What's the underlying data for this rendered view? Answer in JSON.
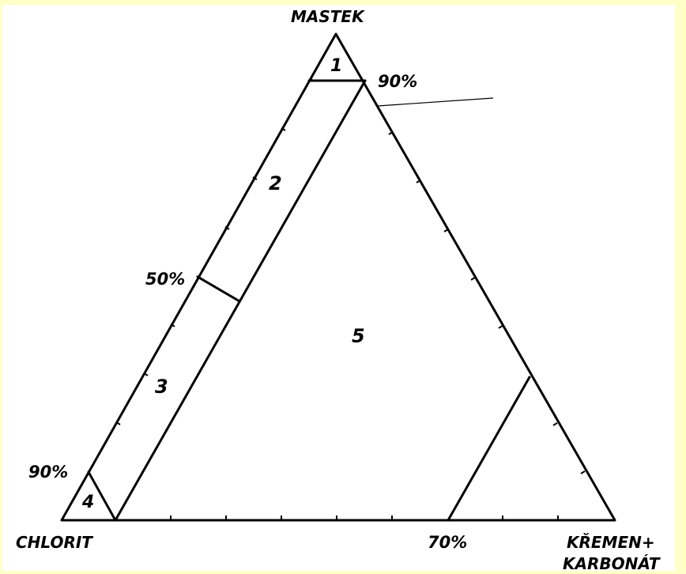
{
  "vertices": {
    "top": "MASTEK",
    "left": "CHLORIT",
    "right_line1": "KŘEMEN+",
    "right_line2": "KARBONÁT"
  },
  "percent_labels": {
    "top_90": "90%",
    "left_50": "50%",
    "left_90": "90%",
    "base_70": "70%"
  },
  "field_labels": {
    "field_1": "1",
    "field_2": "2",
    "field_3": "3",
    "field_4": "4",
    "field_5": "5"
  },
  "colors": {
    "page_background": "#ffffc8",
    "canvas_background": "#ffffff",
    "line": "#000000"
  }
}
